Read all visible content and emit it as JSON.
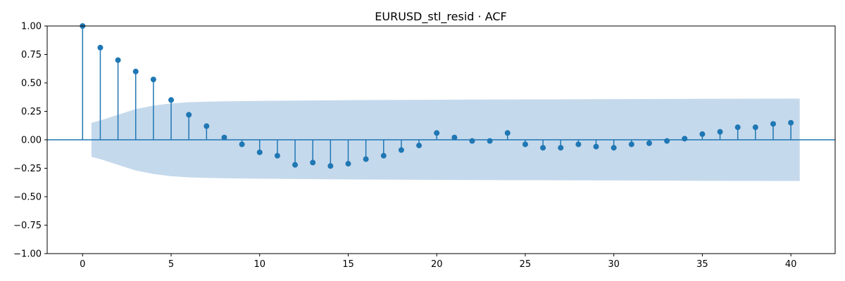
{
  "chart_data": {
    "type": "stem",
    "title": "EURUSD_stl_resid · ACF",
    "xlabel": "",
    "ylabel": "",
    "xlim": [
      -2,
      42.5
    ],
    "ylim": [
      -1.0,
      1.0
    ],
    "x_ticks": [
      0,
      5,
      10,
      15,
      20,
      25,
      30,
      35,
      40
    ],
    "y_ticks": [
      1.0,
      0.75,
      0.5,
      0.25,
      0.0,
      -0.25,
      -0.5,
      -0.75,
      -1.0
    ],
    "x_tick_labels": [
      "0",
      "5",
      "10",
      "15",
      "20",
      "25",
      "30",
      "35",
      "40"
    ],
    "y_tick_labels": [
      "1.00",
      "0.75",
      "0.50",
      "0.25",
      "0.00",
      "−0.25",
      "−0.50",
      "−0.75",
      "−1.00"
    ],
    "lags": [
      0,
      1,
      2,
      3,
      4,
      5,
      6,
      7,
      8,
      9,
      10,
      11,
      12,
      13,
      14,
      15,
      16,
      17,
      18,
      19,
      20,
      21,
      22,
      23,
      24,
      25,
      26,
      27,
      28,
      29,
      30,
      31,
      32,
      33,
      34,
      35,
      36,
      37,
      38,
      39,
      40
    ],
    "acf": [
      1.0,
      0.81,
      0.7,
      0.6,
      0.53,
      0.35,
      0.22,
      0.12,
      0.02,
      -0.04,
      -0.11,
      -0.14,
      -0.22,
      -0.2,
      -0.23,
      -0.21,
      -0.17,
      -0.14,
      -0.09,
      -0.05,
      0.06,
      0.02,
      -0.01,
      -0.01,
      0.06,
      -0.04,
      -0.07,
      -0.07,
      -0.04,
      -0.06,
      -0.07,
      -0.04,
      -0.03,
      -0.01,
      0.01,
      0.05,
      0.07,
      0.11,
      0.11,
      0.14,
      0.15
    ],
    "confidence_band": {
      "lags": [
        0.5,
        1,
        2,
        3,
        4,
        5,
        6,
        7,
        8,
        10,
        15,
        20,
        25,
        30,
        35,
        40,
        40.5
      ],
      "upper": [
        0.15,
        0.17,
        0.22,
        0.27,
        0.3,
        0.32,
        0.33,
        0.335,
        0.338,
        0.342,
        0.348,
        0.352,
        0.355,
        0.357,
        0.36,
        0.362,
        0.362
      ]
    },
    "colors": {
      "stem": "#1f77b4",
      "band": "#c5d9ec",
      "zero_line": "#1f77b4"
    },
    "grid": false
  }
}
